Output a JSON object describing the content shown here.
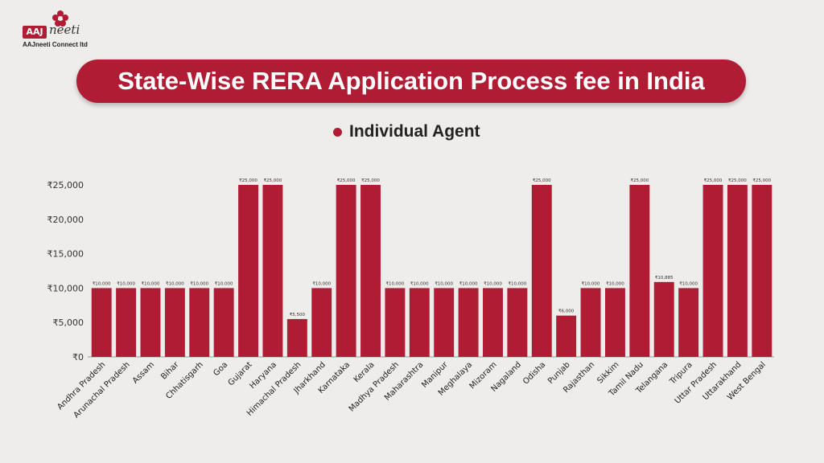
{
  "logo": {
    "badge_text": "AAJ",
    "script_text": "neeti",
    "company_name": "AAJneeti Connect ltd"
  },
  "colors": {
    "accent": "#b11c35",
    "background": "#efedeb",
    "text": "#222222"
  },
  "chart_data": {
    "type": "bar",
    "title": "State-Wise RERA Application Process fee in India",
    "legend": {
      "entries": [
        "Individual Agent"
      ],
      "position": "top-center"
    },
    "series": [
      {
        "name": "Individual Agent",
        "values": [
          10000,
          10000,
          10000,
          10000,
          10000,
          10000,
          25000,
          25000,
          5500,
          10000,
          25000,
          25000,
          10000,
          10000,
          10000,
          10000,
          10000,
          10000,
          25000,
          6000,
          10000,
          10000,
          25000,
          10885,
          10000,
          25000,
          25000,
          25000
        ]
      }
    ],
    "categories": [
      "Andhra Pradesh",
      "Arunachal Pradesh",
      "Assam",
      "Bihar",
      "Chhatisgarh",
      "Goa",
      "Gujarat",
      "Haryana",
      "Himachal Pradesh",
      "Jharkhand",
      "Karnataka",
      "Kerala",
      "Madhya Pradesh",
      "Maharashtra",
      "Manipur",
      "Meghalaya",
      "Mizoram",
      "Nagaland",
      "Odisha",
      "Punjab",
      "Rajasthan",
      "Sikkim",
      "Tamil Nadu",
      "Telangana",
      "Tripura",
      "Uttar Pradesh",
      "Uttarakhand",
      "West Bengal"
    ],
    "data_labels": [
      "₹10,000",
      "₹10,000",
      "₹10,000",
      "₹10,000",
      "₹10,000",
      "₹10,000",
      "₹25,000",
      "₹25,000",
      "₹5,500",
      "₹10,000",
      "₹25,000",
      "₹25,000",
      "₹10,000",
      "₹10,000",
      "₹10,000",
      "₹10,000",
      "₹10,000",
      "₹10,000",
      "₹25,000",
      "₹6,000",
      "₹10,000",
      "₹10,000",
      "₹25,000",
      "₹10,885",
      "₹10,000",
      "₹25,000",
      "₹25,000",
      "₹25,000"
    ],
    "y_ticks": [
      0,
      5000,
      10000,
      15000,
      20000,
      25000
    ],
    "y_tick_labels": [
      "₹0",
      "₹5,000",
      "₹10,000",
      "₹15,000",
      "₹20,000",
      "₹25,000"
    ],
    "ylim": [
      0,
      25000
    ],
    "grid": false,
    "xlabel": "",
    "ylabel": ""
  }
}
